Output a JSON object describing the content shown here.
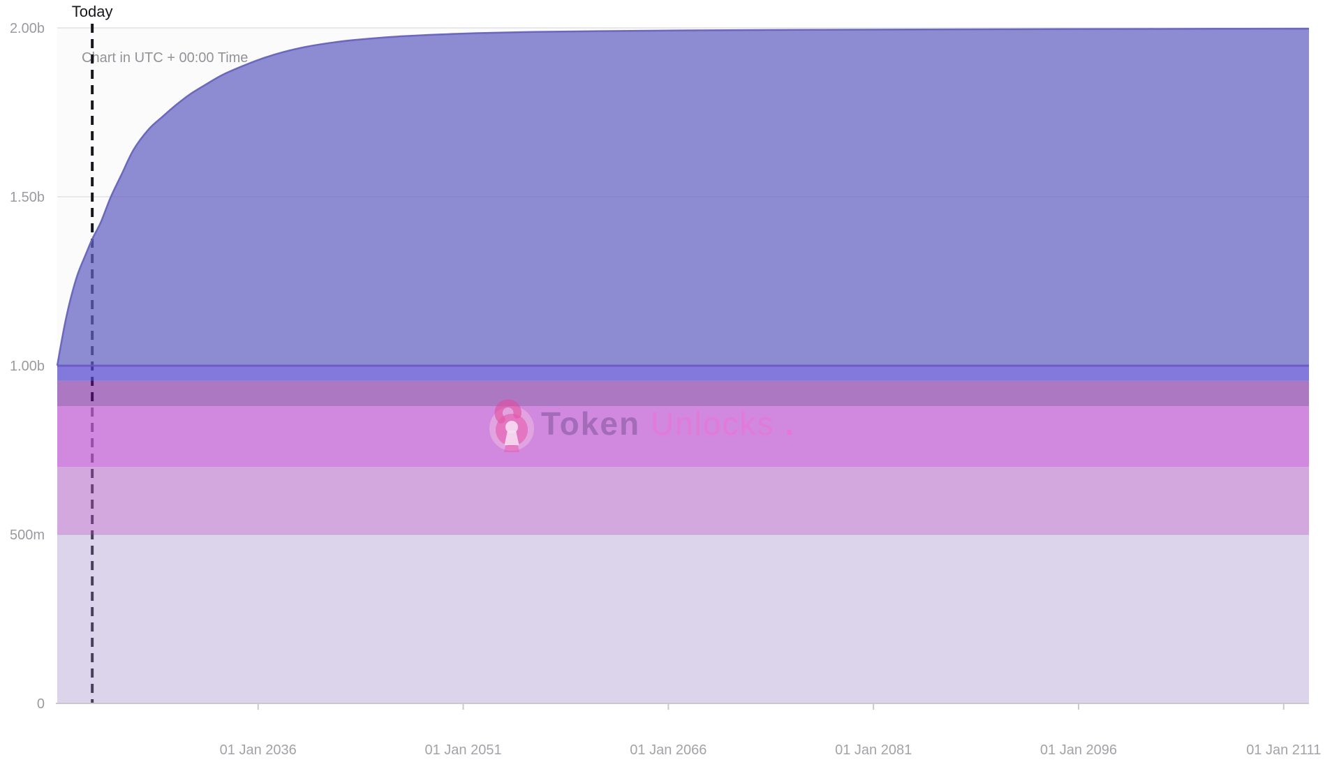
{
  "page": {
    "background": "#ffffff",
    "today_label": "Today",
    "utc_note": "Chart in UTC + 00:00 Time"
  },
  "watermark": {
    "brand_bold": "Token",
    "brand_light": "Unlocks",
    "brand_dot": ".",
    "brand_navy": "#262150",
    "brand_pink": "#ff64cd",
    "lock_pink": "#e558ab"
  },
  "chart_data": {
    "type": "area",
    "unit": "billions of tokens",
    "x_axis": {
      "domain_years": [
        2021.31,
        2112.85
      ],
      "ticks": [
        {
          "year": 2036,
          "label": "01 Jan 2036"
        },
        {
          "year": 2051,
          "label": "01 Jan 2051"
        },
        {
          "year": 2066,
          "label": "01 Jan 2066"
        },
        {
          "year": 2081,
          "label": "01 Jan 2081"
        },
        {
          "year": 2096,
          "label": "01 Jan 2096"
        },
        {
          "year": 2111,
          "label": "01 Jan 2111"
        }
      ]
    },
    "y_axis": {
      "domain": [
        0,
        2.0
      ],
      "ticks": [
        {
          "value": 2.0,
          "label": "2.00b"
        },
        {
          "value": 1.5,
          "label": "1.50b"
        },
        {
          "value": 1.0,
          "label": "1.00b"
        },
        {
          "value": 0.5,
          "label": "500m"
        },
        {
          "value": 0.0,
          "label": "0"
        }
      ]
    },
    "annotations": {
      "today_year": 2023.87,
      "today_line_color": "#17171e"
    },
    "bands": [
      {
        "name": "allocation-band-1",
        "from": 0.0,
        "to": 0.5,
        "fill": "rgba(161,141,206,0.35)"
      },
      {
        "name": "allocation-band-2",
        "from": 0.5,
        "to": 0.7,
        "fill": "rgba(177,100,200,0.55)"
      },
      {
        "name": "allocation-band-3",
        "from": 0.7,
        "to": 0.88,
        "fill": "rgba(195,98,214,0.75)"
      },
      {
        "name": "allocation-band-4",
        "from": 0.88,
        "to": 0.955,
        "fill": "rgba(106,13,146,0.55)"
      },
      {
        "name": "allocation-band-5",
        "from": 0.955,
        "to": 1.0,
        "fill": "rgba(85,70,208,0.72)",
        "top_stroke": "rgba(104,82,200,0.85)"
      }
    ],
    "series": [
      {
        "name": "total-emission",
        "base": 1.0,
        "fill": "rgba(99,96,194,0.72)",
        "stroke": "rgba(103,99,188,0.95)",
        "points": [
          [
            2021.31,
            1.0
          ],
          [
            2021.55,
            1.055
          ],
          [
            2021.9,
            1.13
          ],
          [
            2022.3,
            1.2
          ],
          [
            2022.8,
            1.27
          ],
          [
            2023.4,
            1.33
          ],
          [
            2023.87,
            1.375
          ],
          [
            2024.5,
            1.425
          ],
          [
            2025.2,
            1.497
          ],
          [
            2026.0,
            1.565
          ],
          [
            2026.9,
            1.64
          ],
          [
            2028.0,
            1.7
          ],
          [
            2029.0,
            1.737
          ],
          [
            2030.0,
            1.772
          ],
          [
            2031.0,
            1.803
          ],
          [
            2032.2,
            1.833
          ],
          [
            2033.4,
            1.861
          ],
          [
            2034.8,
            1.886
          ],
          [
            2036.2,
            1.908
          ],
          [
            2037.8,
            1.928
          ],
          [
            2039.5,
            1.944
          ],
          [
            2041.5,
            1.957
          ],
          [
            2043.5,
            1.966
          ],
          [
            2046.0,
            1.974
          ],
          [
            2049.0,
            1.98
          ],
          [
            2052.0,
            1.9845
          ],
          [
            2056.0,
            1.988
          ],
          [
            2061.0,
            1.9905
          ],
          [
            2067.0,
            1.9925
          ],
          [
            2074.0,
            1.994
          ],
          [
            2082.0,
            1.9952
          ],
          [
            2091.0,
            1.9962
          ],
          [
            2101.0,
            1.997
          ],
          [
            2112.85,
            1.9978
          ]
        ]
      }
    ],
    "style": {
      "gridline_color": "#e8e7ea",
      "axis_line_color": "#c9c8cd",
      "y_label_color": "#9b9aa0",
      "x_label_color": "#a3a2a8"
    },
    "grid": true,
    "legend": "none"
  }
}
